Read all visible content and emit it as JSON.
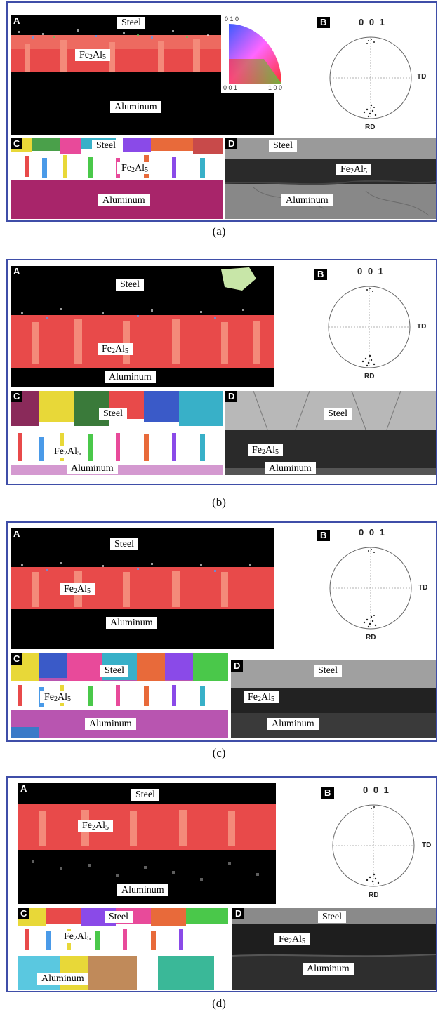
{
  "labels": {
    "steel": "Steel",
    "aluminum": "Aluminum",
    "fe": "Fe",
    "n2": "2",
    "al": "Al",
    "n5": "5"
  },
  "letters": {
    "a": "A",
    "b": "B",
    "c": "C",
    "d": "D"
  },
  "pole_figure": {
    "top": "0 0 1",
    "right": "TD",
    "bottom": "RD"
  },
  "ipf_key": {
    "top": "0 1 0",
    "left": "0 0 1",
    "right": "1 0 0"
  },
  "captions": {
    "a": "(a)",
    "b": "(b)",
    "c": "(c)",
    "d": "(d)"
  },
  "colors": {
    "frame": "#3f4ea8",
    "fe2al5_grains": "#f0504a",
    "aluminum_phase_c": "#a8256a",
    "aluminum_phase_b": "#b855b0"
  }
}
